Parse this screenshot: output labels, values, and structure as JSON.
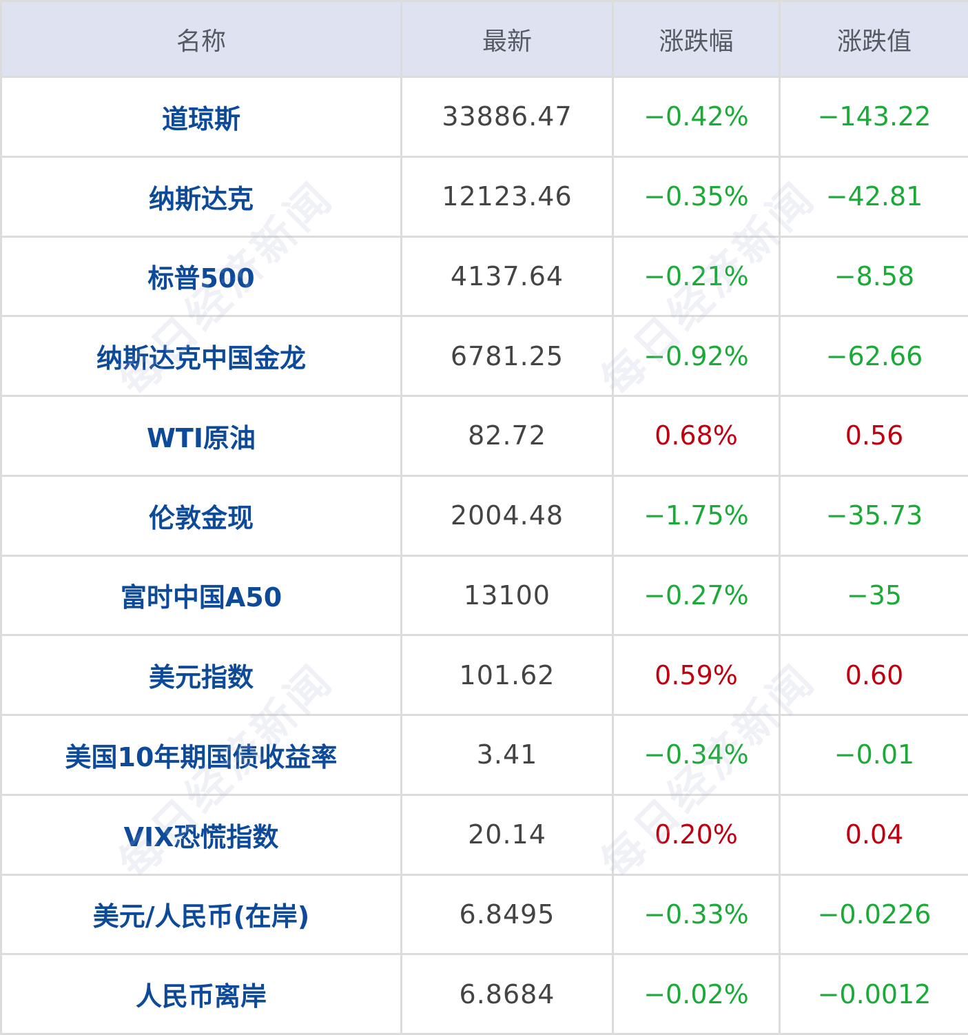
{
  "colors": {
    "header_bg": "#dfe3f1",
    "name": "#0d4a9a",
    "up": "#c00010",
    "down": "#1aaa37",
    "border": "#dcdcdc"
  },
  "watermark": "每日经济新闻",
  "headers": [
    "名称",
    "最新",
    "涨跌幅",
    "涨跌值"
  ],
  "rows": [
    {
      "name": "道琼斯",
      "latest": "33886.47",
      "pct": "−0.42%",
      "chg": "−143.22",
      "dir": "down"
    },
    {
      "name": "纳斯达克",
      "latest": "12123.46",
      "pct": "−0.35%",
      "chg": "−42.81",
      "dir": "down"
    },
    {
      "name": "标普500",
      "latest": "4137.64",
      "pct": "−0.21%",
      "chg": "−8.58",
      "dir": "down"
    },
    {
      "name": "纳斯达克中国金龙",
      "latest": "6781.25",
      "pct": "−0.92%",
      "chg": "−62.66",
      "dir": "down"
    },
    {
      "name": "WTI原油",
      "latest": "82.72",
      "pct": "0.68%",
      "chg": "0.56",
      "dir": "up"
    },
    {
      "name": "伦敦金现",
      "latest": "2004.48",
      "pct": "−1.75%",
      "chg": "−35.73",
      "dir": "down"
    },
    {
      "name": "富时中国A50",
      "latest": "13100",
      "pct": "−0.27%",
      "chg": "−35",
      "dir": "down"
    },
    {
      "name": "美元指数",
      "latest": "101.62",
      "pct": "0.59%",
      "chg": "0.60",
      "dir": "up"
    },
    {
      "name": "美国10年期国债收益率",
      "latest": "3.41",
      "pct": "−0.34%",
      "chg": "−0.01",
      "dir": "down"
    },
    {
      "name": "VIX恐慌指数",
      "latest": "20.14",
      "pct": "0.20%",
      "chg": "0.04",
      "dir": "up"
    },
    {
      "name": "美元/人民币(在岸)",
      "latest": "6.8495",
      "pct": "−0.33%",
      "chg": "−0.0226",
      "dir": "down"
    },
    {
      "name": "人民币离岸",
      "latest": "6.8684",
      "pct": "−0.02%",
      "chg": "−0.0012",
      "dir": "down"
    }
  ]
}
